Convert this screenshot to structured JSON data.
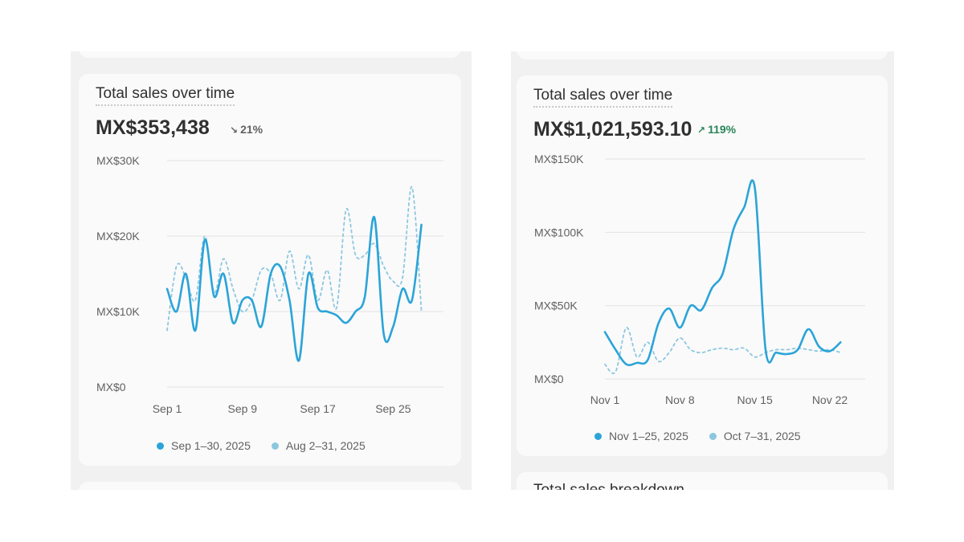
{
  "left_card": {
    "title": "Total sales over time",
    "total": "MX$353,438",
    "change": "21%",
    "change_direction": "down",
    "legend": [
      {
        "label": "Sep 1–30, 2025",
        "color": "#2ba4d8"
      },
      {
        "label": "Aug 2–31, 2025",
        "color": "#8cc7e0"
      }
    ]
  },
  "right_card": {
    "title": "Total sales over time",
    "total": "MX$1,021,593.10",
    "change": "119%",
    "change_direction": "up",
    "legend": [
      {
        "label": "Nov 1–25, 2025",
        "color": "#2ba4d8"
      },
      {
        "label": "Oct 7–31, 2025",
        "color": "#8cc7e0"
      }
    ],
    "next_section_title": "Total sales breakdown"
  },
  "chart_data": [
    {
      "type": "line",
      "title": "Total sales over time",
      "y_ticks": [
        "MX$0",
        "MX$10K",
        "MX$20K",
        "MX$30K"
      ],
      "ylim": [
        0,
        30000
      ],
      "x_ticks": [
        "Sep 1",
        "Sep 9",
        "Sep 17",
        "Sep 25"
      ],
      "x_tick_positions": [
        1,
        9,
        17,
        25
      ],
      "xlim": [
        1,
        30
      ],
      "grid": true,
      "legend_position": "bottom",
      "series": [
        {
          "name": "Sep 1–30, 2025",
          "style": "solid",
          "color": "#2ba4d8",
          "x": [
            1,
            2,
            3,
            4,
            5,
            6,
            7,
            8,
            9,
            10,
            11,
            12,
            13,
            14,
            15,
            16,
            17,
            18,
            19,
            20,
            21,
            22,
            23,
            24,
            25,
            26,
            27,
            28,
            29,
            30
          ],
          "y": [
            13000,
            10000,
            15000,
            7500,
            19500,
            12000,
            15000,
            8500,
            11500,
            11500,
            8000,
            15000,
            16000,
            11500,
            3500,
            15000,
            10500,
            10000,
            9500,
            8500,
            10000,
            12000,
            22500,
            7000,
            8000,
            13000,
            11500,
            21500,
            null,
            null
          ]
        },
        {
          "name": "Aug 2–31, 2025",
          "style": "dashed",
          "color": "#8cc7e0",
          "x": [
            1,
            2,
            3,
            4,
            5,
            6,
            7,
            8,
            9,
            10,
            11,
            12,
            13,
            14,
            15,
            16,
            17,
            18,
            19,
            20,
            21,
            22,
            23,
            24,
            25,
            26,
            27,
            28,
            29,
            30
          ],
          "y": [
            7500,
            16000,
            14500,
            11500,
            20000,
            12500,
            17000,
            13000,
            10000,
            11500,
            15500,
            15000,
            11500,
            18000,
            13000,
            17500,
            11500,
            15500,
            10500,
            23500,
            17500,
            17500,
            19000,
            16000,
            14000,
            14500,
            26500,
            10000,
            null,
            null
          ]
        }
      ]
    },
    {
      "type": "line",
      "title": "Total sales over time",
      "y_ticks": [
        "MX$0",
        "MX$50K",
        "MX$100K",
        "MX$150K"
      ],
      "ylim": [
        0,
        150000
      ],
      "x_ticks": [
        "Nov 1",
        "Nov 8",
        "Nov 15",
        "Nov 22"
      ],
      "x_tick_positions": [
        1,
        8,
        15,
        22
      ],
      "xlim": [
        1,
        25
      ],
      "grid": true,
      "legend_position": "bottom",
      "series": [
        {
          "name": "Nov 1–25, 2025",
          "style": "solid",
          "color": "#2ba4d8",
          "x": [
            1,
            2,
            3,
            4,
            5,
            6,
            7,
            8,
            9,
            10,
            11,
            12,
            13,
            14,
            15,
            16,
            17,
            18,
            19,
            20,
            21,
            22,
            23,
            24,
            25
          ],
          "y": [
            32000,
            20000,
            10000,
            11000,
            13000,
            38000,
            48000,
            35000,
            50000,
            47000,
            62000,
            72000,
            102000,
            117000,
            130000,
            20000,
            18000,
            17000,
            20000,
            34000,
            22000,
            19000,
            25000,
            null,
            null
          ]
        },
        {
          "name": "Oct 7–31, 2025",
          "style": "dashed",
          "color": "#8cc7e0",
          "x": [
            1,
            2,
            3,
            4,
            5,
            6,
            7,
            8,
            9,
            10,
            11,
            12,
            13,
            14,
            15,
            16,
            17,
            18,
            19,
            20,
            21,
            22,
            23,
            24,
            25
          ],
          "y": [
            10000,
            5000,
            35000,
            15000,
            25000,
            12000,
            18000,
            28000,
            20000,
            18000,
            20000,
            21000,
            20000,
            21000,
            15000,
            18000,
            20000,
            20000,
            21000,
            20000,
            19000,
            20000,
            18000,
            null,
            null
          ]
        }
      ]
    }
  ]
}
